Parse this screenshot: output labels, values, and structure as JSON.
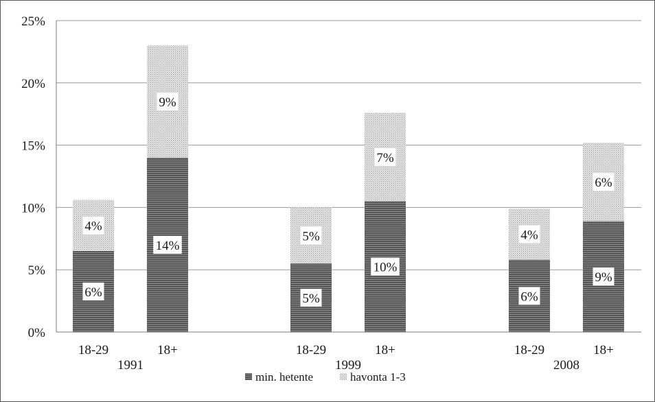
{
  "chart_data": {
    "type": "bar",
    "stacked": true,
    "groups": [
      {
        "year": "1991",
        "categories": [
          {
            "label": "18-29",
            "values": [
              6.5,
              4.1
            ],
            "labels": [
              "6%",
              "4%"
            ]
          },
          {
            "label": "18+",
            "values": [
              14.0,
              9.0
            ],
            "labels": [
              "14%",
              "9%"
            ]
          }
        ]
      },
      {
        "year": "1999",
        "categories": [
          {
            "label": "18-29",
            "values": [
              5.5,
              4.5
            ],
            "labels": [
              "5%",
              "5%"
            ]
          },
          {
            "label": "18+",
            "values": [
              10.5,
              7.1
            ],
            "labels": [
              "10%",
              "7%"
            ]
          }
        ]
      },
      {
        "year": "2008",
        "categories": [
          {
            "label": "18-29",
            "values": [
              5.8,
              4.1
            ],
            "labels": [
              "6%",
              "4%"
            ]
          },
          {
            "label": "18+",
            "values": [
              8.9,
              6.3
            ],
            "labels": [
              "9%",
              "6%"
            ]
          }
        ]
      }
    ],
    "series": [
      {
        "name": "min. hetente",
        "color": "#6e6e6e",
        "pattern": "horizontal-lines"
      },
      {
        "name": "havonta 1-3",
        "color": "#d9d9d9",
        "pattern": "dots"
      }
    ],
    "yticks": [
      "0%",
      "5%",
      "10%",
      "15%",
      "20%",
      "25%"
    ],
    "ylim": [
      0,
      25
    ],
    "ystep": 5,
    "grid": true,
    "legend_position": "bottom"
  }
}
